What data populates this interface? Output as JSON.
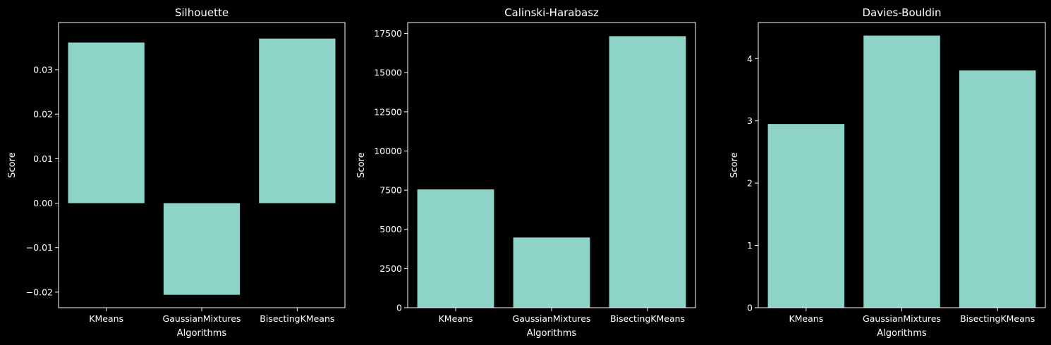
{
  "chart_data": [
    {
      "type": "bar",
      "title": "Silhouette",
      "xlabel": "Algorithms",
      "ylabel": "Score",
      "categories": [
        "KMeans",
        "GaussianMixtures",
        "BisectingKMeans"
      ],
      "values": [
        0.0361,
        -0.0206,
        0.037
      ],
      "ylim": [
        -0.0235,
        0.0406
      ],
      "yticks": [
        -0.02,
        -0.01,
        0.0,
        0.01,
        0.02,
        0.03
      ],
      "ytick_labels": [
        "−0.02",
        "−0.01",
        "0.00",
        "0.01",
        "0.02",
        "0.03"
      ],
      "grid": false,
      "bar_color": "#8dd3c7"
    },
    {
      "type": "bar",
      "title": "Calinski-Harabasz",
      "xlabel": "Algorithms",
      "ylabel": "Score",
      "categories": [
        "KMeans",
        "GaussianMixtures",
        "BisectingKMeans"
      ],
      "values": [
        7550,
        4480,
        17330
      ],
      "ylim": [
        0,
        18200
      ],
      "yticks": [
        0,
        2500,
        5000,
        7500,
        10000,
        12500,
        15000,
        17500
      ],
      "ytick_labels": [
        "0",
        "2500",
        "5000",
        "7500",
        "10000",
        "12500",
        "15000",
        "17500"
      ],
      "grid": false,
      "bar_color": "#8dd3c7"
    },
    {
      "type": "bar",
      "title": "Davies-Bouldin",
      "xlabel": "Algorithms",
      "ylabel": "Score",
      "categories": [
        "KMeans",
        "GaussianMixtures",
        "BisectingKMeans"
      ],
      "values": [
        2.95,
        4.37,
        3.81
      ],
      "ylim": [
        0,
        4.58
      ],
      "yticks": [
        0,
        1,
        2,
        3,
        4
      ],
      "ytick_labels": [
        "0",
        "1",
        "2",
        "3",
        "4"
      ],
      "grid": false,
      "bar_color": "#8dd3c7"
    }
  ],
  "colors": {
    "background": "#000000",
    "foreground": "#ffffff",
    "bar": "#8dd3c7"
  }
}
